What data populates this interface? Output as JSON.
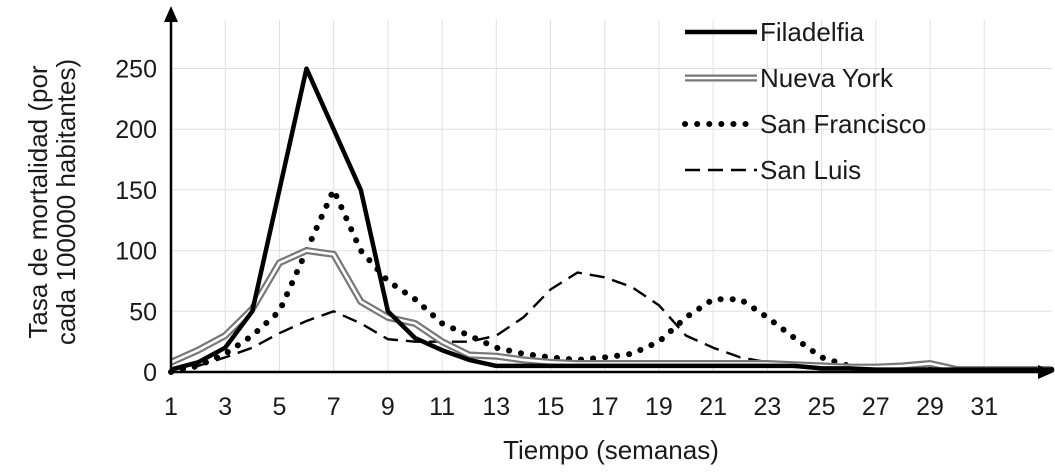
{
  "chart_data": {
    "type": "line",
    "xlabel": "Tiempo (semanas)",
    "ylabel_lines": [
      "Tasa de mortalidad (por",
      "cada 100000 habitantes)"
    ],
    "xlim": [
      1,
      33.5
    ],
    "ylim": [
      0,
      290
    ],
    "x_ticks": [
      1,
      3,
      5,
      7,
      9,
      11,
      13,
      15,
      17,
      19,
      21,
      23,
      25,
      27,
      29,
      31
    ],
    "y_ticks": [
      0,
      50,
      100,
      150,
      200,
      250
    ],
    "grid": true,
    "legend_position": "top-right",
    "series": [
      {
        "name": "Filadelfia",
        "color": "#000000",
        "style": "solid",
        "x": [
          1,
          2,
          3,
          4,
          5,
          6,
          7,
          8,
          9,
          10,
          11,
          12,
          13,
          14,
          15,
          16,
          17,
          18,
          19,
          20,
          21,
          22,
          23,
          24,
          25,
          26,
          27,
          28,
          29,
          30,
          31,
          32,
          33.5
        ],
        "y": [
          2,
          8,
          20,
          50,
          150,
          250,
          200,
          150,
          50,
          28,
          18,
          10,
          5,
          5,
          5,
          5,
          5,
          5,
          5,
          5,
          5,
          5,
          5,
          5,
          3,
          3,
          2,
          2,
          2,
          2,
          2,
          2,
          2
        ]
      },
      {
        "name": "Nueva York",
        "color": "#777777",
        "style": "double",
        "x": [
          1,
          2,
          3,
          4,
          5,
          6,
          7,
          8,
          9,
          10,
          11,
          12,
          13,
          14,
          15,
          16,
          17,
          18,
          19,
          20,
          21,
          22,
          23,
          24,
          25,
          26,
          27,
          28,
          29,
          30,
          31,
          32,
          33.5
        ],
        "y": [
          8,
          18,
          30,
          52,
          90,
          100,
          97,
          58,
          45,
          40,
          25,
          14,
          13,
          10,
          8,
          7,
          7,
          7,
          7,
          7,
          7,
          7,
          7,
          6,
          5,
          4,
          4,
          5,
          7,
          2,
          2,
          2,
          2
        ]
      },
      {
        "name": "San Francisco",
        "color": "#000000",
        "style": "dotted",
        "x": [
          1,
          2,
          3,
          4,
          5,
          6,
          7,
          8,
          9,
          10,
          11,
          12,
          13,
          14,
          15,
          16,
          17,
          18,
          19,
          20,
          21,
          22,
          23,
          24,
          25,
          26,
          27,
          28,
          29,
          30,
          31,
          32,
          33.5
        ],
        "y": [
          0,
          5,
          15,
          30,
          50,
          100,
          150,
          100,
          75,
          60,
          40,
          30,
          20,
          15,
          12,
          10,
          12,
          15,
          25,
          45,
          60,
          60,
          45,
          28,
          12,
          5,
          3,
          2,
          2,
          2,
          2,
          2,
          2
        ]
      },
      {
        "name": "San Luis",
        "color": "#000000",
        "style": "dashed",
        "x": [
          1,
          2,
          3,
          4,
          5,
          6,
          7,
          8,
          9,
          10,
          11,
          12,
          13,
          14,
          15,
          16,
          17,
          18,
          19,
          20,
          21,
          22,
          23,
          24,
          25,
          26,
          27,
          28,
          29,
          30,
          31,
          32,
          33.5
        ],
        "y": [
          2,
          5,
          12,
          20,
          32,
          42,
          50,
          40,
          27,
          25,
          25,
          25,
          30,
          45,
          68,
          82,
          78,
          70,
          55,
          30,
          20,
          12,
          8,
          5,
          5,
          3,
          2,
          2,
          2,
          2,
          2,
          2,
          2
        ]
      }
    ]
  }
}
